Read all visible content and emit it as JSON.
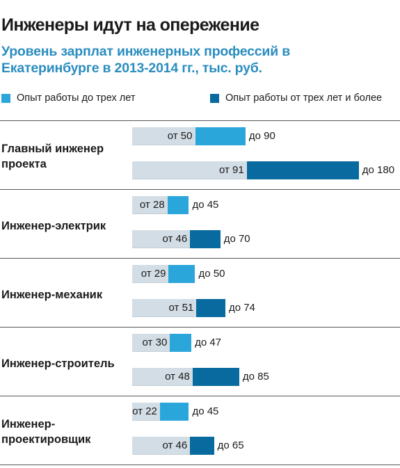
{
  "colors": {
    "short_exp": "#2ba6db",
    "long_exp": "#086a9e",
    "base": "#d3dde5",
    "subtitle": "#2a8dbf"
  },
  "header": {
    "title": "Инженеры идут на опережение",
    "subtitle": "Уровень зарплат инженерных профессий в Екатеринбурге в 2013-2014 гг., тыс. руб."
  },
  "legend": [
    {
      "label": "Опыт работы до трех лет",
      "color": "#2ba6db"
    },
    {
      "label": "Опыт работы от трех лет и более",
      "color": "#086a9e"
    }
  ],
  "chart_data": {
    "type": "bar",
    "title": "Инженеры идут на опережение",
    "subtitle": "Уровень зарплат инженерных профессий в Екатеринбурге в 2013-2014 гг., тыс. руб.",
    "categories": [
      "Главный инженер проекта",
      "Инженер-электрик",
      "Инженер-механик",
      "Инженер-строитель",
      "Инженер-проектировщик"
    ],
    "series": [
      {
        "name": "Опыт работы до трех лет",
        "color": "#2ba6db",
        "from": [
          50,
          28,
          29,
          30,
          22
        ],
        "to": [
          90,
          45,
          50,
          47,
          45
        ],
        "from_labels": [
          "от 50",
          "от 28",
          "от 29",
          "от 30",
          "от 22"
        ],
        "to_labels": [
          "до 90",
          "до 45",
          "до 50",
          "до 47",
          "до 45"
        ]
      },
      {
        "name": "Опыт работы от трех лет и более",
        "color": "#086a9e",
        "from": [
          91,
          46,
          51,
          48,
          46
        ],
        "to": [
          180,
          70,
          74,
          85,
          65
        ],
        "from_labels": [
          "от 91",
          "от 46",
          "от 51",
          "от 48",
          "от 46"
        ],
        "to_labels": [
          "до 180",
          "до 70",
          "до 74",
          "до 85",
          "до 65"
        ]
      }
    ],
    "xlabel": "",
    "ylabel": "",
    "grid": false,
    "legend_position": "top"
  }
}
